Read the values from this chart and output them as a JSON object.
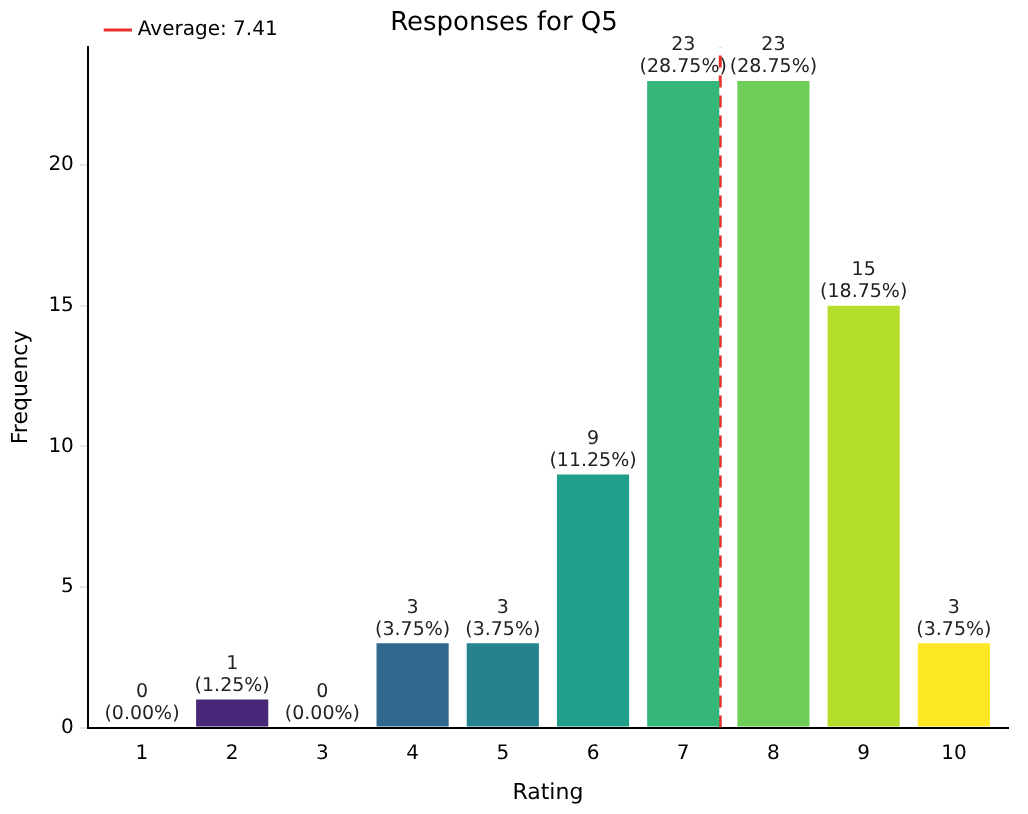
{
  "chart_data": {
    "type": "bar",
    "title": "Responses for Q5",
    "xlabel": "Rating",
    "ylabel": "Frequency",
    "x": [
      1,
      2,
      3,
      4,
      5,
      6,
      7,
      8,
      9,
      10
    ],
    "values": [
      0,
      1,
      0,
      3,
      3,
      9,
      23,
      23,
      15,
      3
    ],
    "colors": [
      "#440154",
      "#482878",
      "#3e4989",
      "#31688e",
      "#26828e",
      "#1f9e89",
      "#35b779",
      "#6ece58",
      "#b5de2b",
      "#fde725"
    ],
    "value_labels": [
      "0\n(0.00%)",
      "1\n(1.25%)",
      "0\n(0.00%)",
      "3\n(3.75%)",
      "3\n(3.75%)",
      "9\n(11.25%)",
      "23\n(28.75%)",
      "23\n(28.75%)",
      "15\n(18.75%)",
      "3\n(3.75%)"
    ],
    "xlim": [
      0.4,
      10.6
    ],
    "xticks": [
      1,
      2,
      3,
      4,
      5,
      6,
      7,
      8,
      9,
      10
    ],
    "ylim": [
      0,
      24.2
    ],
    "yticks": [
      0,
      5,
      10,
      15,
      20
    ],
    "ref_lines": [
      {
        "axis": "x",
        "value": 7.41,
        "label": "Average: 7.41",
        "color": "#e8312a",
        "line_style": "dashed"
      }
    ],
    "legend": "top left",
    "grid": false
  }
}
